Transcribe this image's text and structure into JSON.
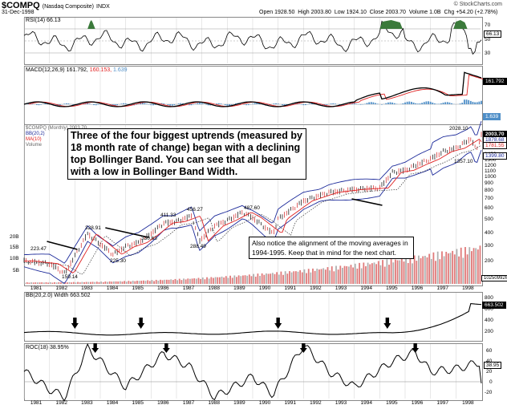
{
  "header": {
    "symbol": "$COMPQ",
    "name": "(Nasdaq Composite)",
    "exchange": "INDX",
    "date": "31-Dec-1998",
    "open": "Open 1928.50",
    "high": "High 2003.80",
    "low": "Low 1924.10",
    "close": "Close 2003.70",
    "volume": "Volume 1.0B",
    "change": "Chg +54.20 (+2.78%)",
    "credit": "© StockCharts.com"
  },
  "annotations": {
    "main": "Three of the four biggest uptrends (measured by 18 month rate of change) began with a declining top Bollinger Band. You can see that all began with a low in Bollinger Band Width.",
    "secondary": "Also notice the alignment of the moving averages in 1994-1995. Keep that in mind for the next chart."
  },
  "panels": {
    "rsi": {
      "label": "RSI(14) 66.13",
      "value_tag": "66.13",
      "ticks": [
        "70",
        "50",
        "30"
      ]
    },
    "macd": {
      "label_prefix": "MACD(12,26,9)",
      "v1": "161.792,",
      "v2": "160.153,",
      "v3": "1.639",
      "tag1": "161.792",
      "tag2": "1.639"
    },
    "price": {
      "legend": [
        "$COMPQ (Monthly) 2003.70",
        "BB(20,2)",
        "MA(10)",
        "Volume"
      ],
      "right_tags": [
        "2003.70",
        "1878.68",
        "1781.55",
        "1399.80"
      ],
      "right_ticks": [
        "2000",
        "1800",
        "1600",
        "1400",
        "1300",
        "1200",
        "1100",
        "1000",
        "900",
        "800",
        "700",
        "600",
        "500",
        "400",
        "300",
        "200"
      ],
      "vol_ticks": [
        "20B",
        "15B",
        "10B",
        "5B"
      ],
      "vol_tag": "1025099264",
      "peak_labels": [
        "223.47",
        "159.14",
        "328.91",
        "225.30",
        "330.63",
        "411.33",
        "456.27",
        "288.49",
        "487.60",
        "2028.10",
        "1357.10"
      ]
    },
    "bbw": {
      "label": "BB(20,2.0) Width 663.502",
      "value_tag": "663.502",
      "ticks": [
        "800",
        "600",
        "400",
        "200"
      ]
    },
    "roc": {
      "label": "ROC(18) 38.95%",
      "value_tag": "38.95",
      "ticks": [
        "60",
        "40",
        "20",
        "0",
        "-20"
      ]
    }
  },
  "x_axis_years": [
    "1981",
    "1982",
    "1983",
    "1984",
    "1985",
    "1986",
    "1987",
    "1988",
    "1989",
    "1990",
    "1991",
    "1992",
    "1993",
    "1994",
    "1995",
    "1996",
    "1997",
    "1998"
  ],
  "colors": {
    "green_fill": "#3b7a3b",
    "red_line": "#e02020",
    "blue_line": "#1c2a9a",
    "macd_hist": "#4f8fc8",
    "volume_red": "#e07a7a",
    "volume_gray": "#b0b0b0"
  },
  "chart_data": [
    {
      "type": "line",
      "title": "Nasdaq Composite monthly with Bollinger Bands (20,2) and MA(10)",
      "x": [
        1981,
        1982,
        1982.6,
        1983.5,
        1984.5,
        1985,
        1985.5,
        1986,
        1986.5,
        1987,
        1987.6,
        1987.9,
        1988.5,
        1989,
        1989.6,
        1990,
        1990.8,
        1991,
        1992,
        1993,
        1994,
        1995,
        1995.5,
        1996,
        1996.5,
        1997,
        1997.5,
        1998,
        1998.6,
        1998.8,
        1998.99
      ],
      "series": [
        {
          "name": "$COMPQ",
          "values": [
            200,
            190,
            159.14,
            328.91,
            225.3,
            260,
            280,
            330.63,
            400,
            411.33,
            456.27,
            288.49,
            380,
            420,
            487.6,
            440,
            330,
            430,
            600,
            700,
            740,
            760,
            1010,
            1050,
            1170,
            1290,
            1480,
            1570,
            1870,
            1500,
            2003.7
          ]
        }
      ],
      "ylim": [
        150,
        2100
      ]
    },
    {
      "type": "line",
      "title": "ROC(18)",
      "x": [
        1981,
        1982,
        1982.6,
        1983.5,
        1985,
        1986.5,
        1987.5,
        1988.5,
        1990,
        1990.8,
        1992,
        1993,
        1994,
        1995.5,
        1996.4,
        1997,
        1998,
        1998.99
      ],
      "series": [
        {
          "name": "ROC(18)",
          "values": [
            20,
            -15,
            -30,
            66,
            -10,
            55,
            30,
            -30,
            10,
            -25,
            72,
            20,
            -10,
            40,
            58,
            20,
            25,
            38.95
          ]
        }
      ],
      "ylim": [
        -30,
        80
      ]
    }
  ]
}
